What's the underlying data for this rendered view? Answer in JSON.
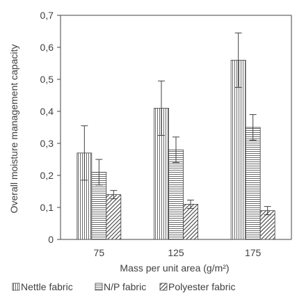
{
  "chart_data": {
    "type": "bar",
    "categories": [
      "75",
      "125",
      "175"
    ],
    "series": [
      {
        "name": "Nettle fabric",
        "values": [
          0.27,
          0.41,
          0.56
        ],
        "errors": [
          0.085,
          0.085,
          0.085
        ],
        "pattern": "vertical-lines"
      },
      {
        "name": "N/P fabric",
        "values": [
          0.21,
          0.28,
          0.35
        ],
        "errors": [
          0.04,
          0.04,
          0.04
        ],
        "pattern": "horizontal-lines"
      },
      {
        "name": "Polyester fabric",
        "values": [
          0.14,
          0.11,
          0.09
        ],
        "errors": [
          0.013,
          0.013,
          0.013
        ],
        "pattern": "diagonal-lines"
      }
    ],
    "yticks": [
      "0",
      "0,1",
      "0,2",
      "0,3",
      "0,4",
      "0,5",
      "0,6",
      "0,7"
    ],
    "ylim": [
      0,
      0.7
    ],
    "xlabel": "Mass per unit area (g/m²)",
    "ylabel": "Overall moisture management capacity",
    "legend_position": "bottom",
    "grid": false,
    "colors": {
      "axis": "#404040",
      "bar_stroke": "#404040",
      "text": "#404040"
    }
  }
}
